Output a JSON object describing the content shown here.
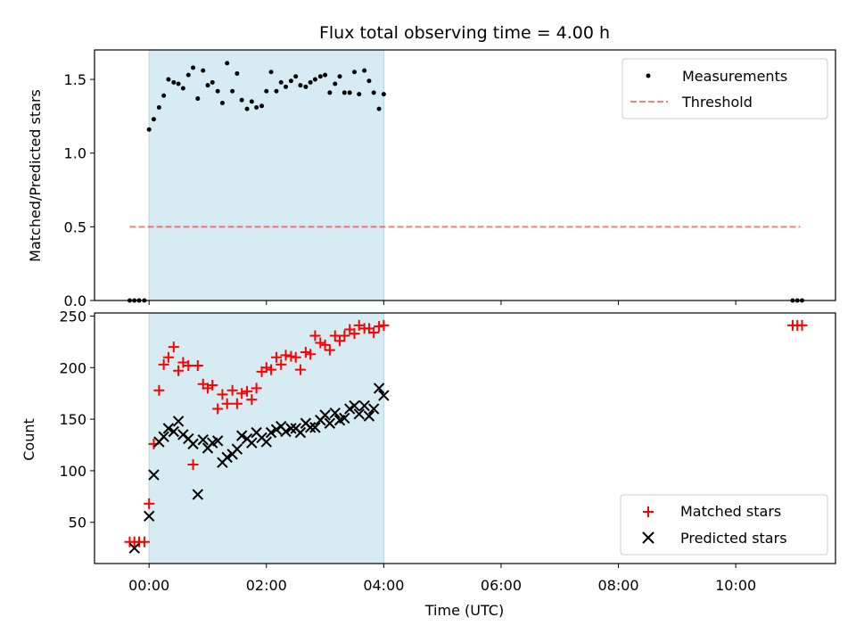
{
  "colors": {
    "shade": "#add8e6",
    "matched": "#ff0000",
    "predicted": "#000000",
    "threshold": "#ff0000",
    "measurement": "#000000"
  },
  "chart_data": {
    "type": "scatter",
    "title": "Flux total observing time = 4.00 h",
    "xlabel": "Time (UTC)",
    "x_unit": "hours",
    "xlim": [
      -0.93,
      11.7
    ],
    "x_ticks": [
      0,
      2,
      4,
      6,
      8,
      10
    ],
    "x_tick_labels": [
      "00:00",
      "02:00",
      "04:00",
      "06:00",
      "08:00",
      "10:00"
    ],
    "shaded_interval": [
      0,
      4
    ],
    "top": {
      "ylabel": "Matched/Predicted stars",
      "ylim": [
        0,
        1.7
      ],
      "y_ticks": [
        0,
        0.5,
        1.0,
        1.5
      ],
      "y_tick_labels": [
        "0.0",
        "0.5",
        "1.0",
        "1.5"
      ],
      "legend_position": "upper-right",
      "legend": [
        "Measurements",
        "Threshold"
      ],
      "threshold": {
        "name": "Threshold",
        "y": 0.5,
        "x_range": [
          -0.33,
          11.1
        ]
      },
      "measurements": {
        "name": "Measurements",
        "x": [
          -0.33,
          -0.25,
          -0.17,
          -0.08,
          0,
          0.08,
          0.17,
          0.25,
          0.33,
          0.42,
          0.5,
          0.58,
          0.67,
          0.75,
          0.83,
          0.92,
          1.0,
          1.08,
          1.17,
          1.25,
          1.33,
          1.42,
          1.5,
          1.58,
          1.67,
          1.75,
          1.83,
          1.92,
          2.0,
          2.08,
          2.17,
          2.25,
          2.33,
          2.42,
          2.5,
          2.58,
          2.67,
          2.75,
          2.83,
          2.92,
          3.0,
          3.08,
          3.17,
          3.25,
          3.33,
          3.42,
          3.5,
          3.58,
          3.67,
          3.75,
          3.83,
          3.92,
          4.0,
          10.97,
          11.05,
          11.13
        ],
        "y": [
          0,
          0,
          0,
          0,
          1.16,
          1.23,
          1.31,
          1.39,
          1.5,
          1.48,
          1.47,
          1.44,
          1.53,
          1.58,
          1.37,
          1.56,
          1.46,
          1.48,
          1.42,
          1.34,
          1.61,
          1.42,
          1.54,
          1.36,
          1.3,
          1.35,
          1.31,
          1.32,
          1.42,
          1.55,
          1.42,
          1.48,
          1.45,
          1.49,
          1.52,
          1.46,
          1.45,
          1.48,
          1.5,
          1.52,
          1.53,
          1.41,
          1.47,
          1.52,
          1.41,
          1.41,
          1.55,
          1.4,
          1.56,
          1.49,
          1.41,
          1.3,
          1.4,
          0,
          0,
          0
        ]
      }
    },
    "bottom": {
      "ylabel": "Count",
      "ylim": [
        10,
        253
      ],
      "y_ticks": [
        50,
        100,
        150,
        200,
        250
      ],
      "y_tick_labels": [
        "50",
        "100",
        "150",
        "200",
        "250"
      ],
      "legend_position": "lower-right",
      "legend": [
        "Matched stars",
        "Predicted stars"
      ],
      "series": [
        {
          "name": "Matched stars",
          "marker": "+",
          "x": [
            -0.33,
            -0.25,
            -0.17,
            -0.08,
            0,
            0.08,
            0.17,
            0.25,
            0.33,
            0.42,
            0.5,
            0.58,
            0.67,
            0.75,
            0.83,
            0.92,
            1.0,
            1.08,
            1.17,
            1.25,
            1.33,
            1.42,
            1.5,
            1.58,
            1.67,
            1.75,
            1.83,
            1.92,
            2.0,
            2.08,
            2.17,
            2.25,
            2.33,
            2.42,
            2.5,
            2.58,
            2.67,
            2.75,
            2.83,
            2.92,
            3.0,
            3.08,
            3.17,
            3.25,
            3.33,
            3.42,
            3.5,
            3.58,
            3.67,
            3.75,
            3.83,
            3.92,
            4.0,
            10.97,
            11.05,
            11.13
          ],
          "y": [
            31,
            31,
            31,
            31,
            68,
            126,
            178,
            203,
            210,
            220,
            197,
            205,
            202,
            106,
            202,
            184,
            180,
            183,
            160,
            174,
            165,
            178,
            165,
            175,
            177,
            169,
            180,
            196,
            200,
            198,
            210,
            203,
            212,
            211,
            210,
            198,
            215,
            213,
            231,
            224,
            222,
            217,
            231,
            226,
            231,
            237,
            233,
            241,
            238,
            238,
            234,
            240,
            241,
            241,
            241,
            241
          ]
        },
        {
          "name": "Predicted stars",
          "marker": "x",
          "x": [
            -0.25,
            0,
            0.08,
            0.17,
            0.25,
            0.33,
            0.42,
            0.5,
            0.58,
            0.67,
            0.75,
            0.83,
            0.92,
            1.0,
            1.08,
            1.17,
            1.25,
            1.33,
            1.42,
            1.5,
            1.58,
            1.67,
            1.75,
            1.83,
            1.92,
            2.0,
            2.08,
            2.17,
            2.25,
            2.33,
            2.42,
            2.5,
            2.58,
            2.67,
            2.75,
            2.83,
            2.92,
            3.0,
            3.08,
            3.17,
            3.25,
            3.33,
            3.42,
            3.5,
            3.58,
            3.67,
            3.75,
            3.83,
            3.92,
            4.0
          ],
          "y": [
            25,
            56,
            96,
            128,
            133,
            141,
            138,
            148,
            135,
            131,
            126,
            77,
            130,
            122,
            127,
            129,
            108,
            113,
            116,
            121,
            134,
            131,
            127,
            137,
            132,
            128,
            137,
            140,
            143,
            138,
            141,
            141,
            137,
            146,
            142,
            142,
            149,
            154,
            146,
            156,
            149,
            151,
            160,
            163,
            155,
            163,
            153,
            160,
            180,
            173
          ]
        }
      ]
    }
  }
}
